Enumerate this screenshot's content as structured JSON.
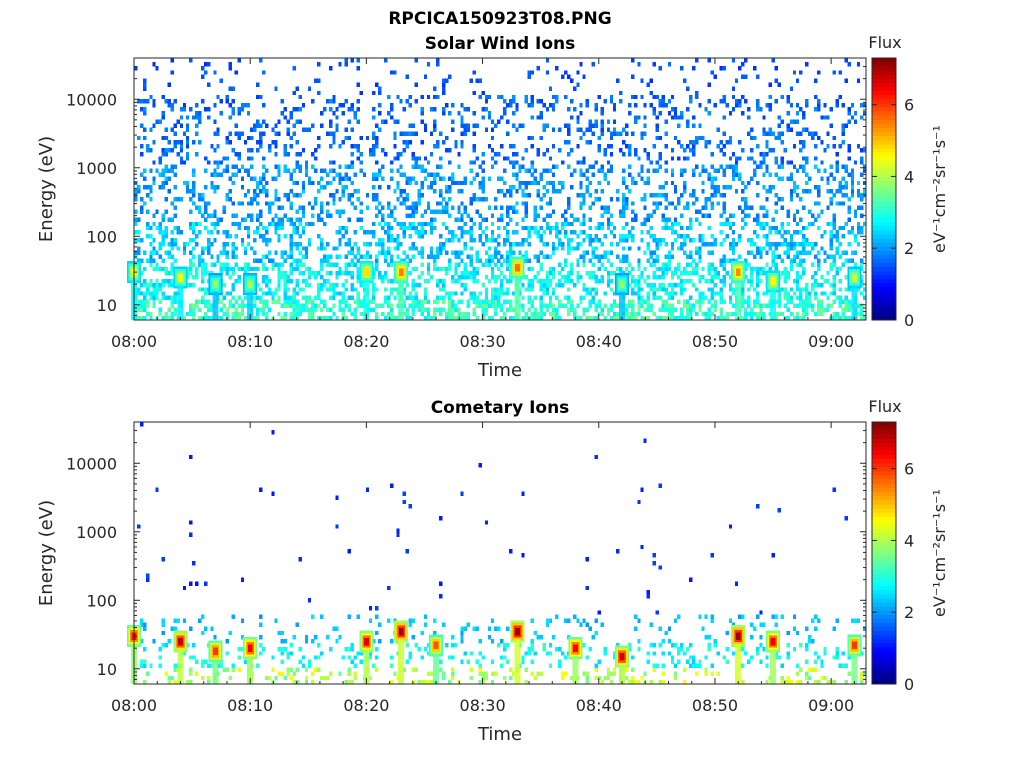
{
  "figure_title": "RPCICA150923T08.PNG",
  "chart_data": [
    {
      "type": "heatmap",
      "title": "Solar Wind Ions",
      "xlabel": "Time",
      "ylabel": "Energy (eV)",
      "y_scale": "log",
      "ylim": [
        6,
        40000
      ],
      "xlim": [
        "08:00",
        "09:03"
      ],
      "x_tick_labels": [
        "08:00",
        "08:10",
        "08:20",
        "08:30",
        "08:40",
        "08:50",
        "09:00"
      ],
      "y_tick_labels": [
        "10",
        "100",
        "1000",
        "10000"
      ],
      "colorbar": {
        "label": "Flux",
        "unit": "eV⁻¹cm⁻²sr⁻¹s⁻¹",
        "range": [
          0,
          7.3
        ],
        "tick_labels": [
          "0",
          "2",
          "4",
          "6"
        ],
        "colormap": "jet"
      },
      "bright_events": [
        {
          "time": "08:00",
          "energy": 30,
          "flux": 4.5
        },
        {
          "time": "08:04",
          "energy": 25,
          "flux": 4.4
        },
        {
          "time": "08:07",
          "energy": 20,
          "flux": 3.8
        },
        {
          "time": "08:10",
          "energy": 20,
          "flux": 4.0
        },
        {
          "time": "08:20",
          "energy": 30,
          "flux": 4.8
        },
        {
          "time": "08:23",
          "energy": 30,
          "flux": 5.5
        },
        {
          "time": "08:33",
          "energy": 35,
          "flux": 5.6
        },
        {
          "time": "08:42",
          "energy": 20,
          "flux": 3.8
        },
        {
          "time": "08:52",
          "energy": 30,
          "flux": 5.4
        },
        {
          "time": "08:55",
          "energy": 22,
          "flux": 4.6
        },
        {
          "time": "09:02",
          "energy": 25,
          "flux": 4.2
        }
      ]
    },
    {
      "type": "heatmap",
      "title": "Cometary Ions",
      "xlabel": "Time",
      "ylabel": "Energy (eV)",
      "y_scale": "log",
      "ylim": [
        6,
        40000
      ],
      "xlim": [
        "08:00",
        "09:03"
      ],
      "x_tick_labels": [
        "08:00",
        "08:10",
        "08:20",
        "08:30",
        "08:40",
        "08:50",
        "09:00"
      ],
      "y_tick_labels": [
        "10",
        "100",
        "1000",
        "10000"
      ],
      "colorbar": {
        "label": "Flux",
        "unit": "eV⁻¹cm⁻²sr⁻¹s⁻¹",
        "range": [
          0,
          7.3
        ],
        "tick_labels": [
          "0",
          "2",
          "4",
          "6"
        ],
        "colormap": "jet"
      },
      "bright_events": [
        {
          "time": "08:00",
          "energy": 30,
          "flux": 6.3
        },
        {
          "time": "08:04",
          "energy": 25,
          "flux": 6.8
        },
        {
          "time": "08:07",
          "energy": 18,
          "flux": 6.0
        },
        {
          "time": "08:10",
          "energy": 20,
          "flux": 6.5
        },
        {
          "time": "08:20",
          "energy": 25,
          "flux": 6.6
        },
        {
          "time": "08:23",
          "energy": 35,
          "flux": 7.0
        },
        {
          "time": "08:26",
          "energy": 22,
          "flux": 5.8
        },
        {
          "time": "08:33",
          "energy": 35,
          "flux": 7.1
        },
        {
          "time": "08:38",
          "energy": 20,
          "flux": 6.4
        },
        {
          "time": "08:42",
          "energy": 15,
          "flux": 6.7
        },
        {
          "time": "08:52",
          "energy": 30,
          "flux": 7.1
        },
        {
          "time": "08:55",
          "energy": 25,
          "flux": 6.5
        },
        {
          "time": "09:02",
          "energy": 22,
          "flux": 6.0
        }
      ]
    }
  ]
}
